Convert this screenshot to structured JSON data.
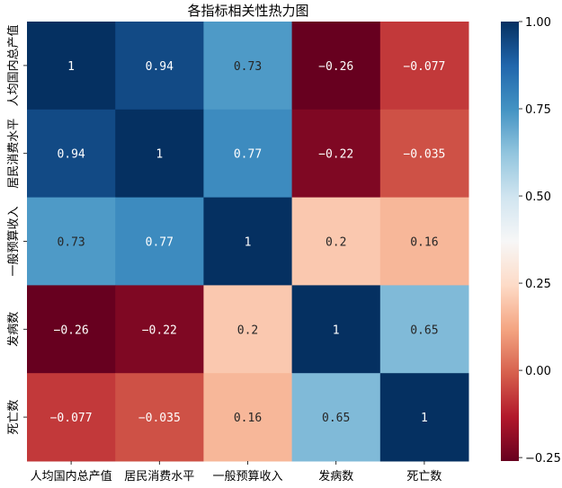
{
  "chart_data": {
    "type": "heatmap",
    "title": "各指标相关性热力图",
    "xlabel": "",
    "ylabel": "",
    "x_categories": [
      "人均国内总产值",
      "居民消费水平",
      "一般预算收入",
      "发病数",
      "死亡数"
    ],
    "y_categories": [
      "人均国内总产值",
      "居民消费水平",
      "一般预算收入",
      "发病数",
      "死亡数"
    ],
    "values": [
      [
        1,
        0.94,
        0.73,
        -0.26,
        -0.077
      ],
      [
        0.94,
        1,
        0.77,
        -0.22,
        -0.035
      ],
      [
        0.73,
        0.77,
        1,
        0.2,
        0.16
      ],
      [
        -0.26,
        -0.22,
        0.2,
        1,
        0.65
      ],
      [
        -0.077,
        -0.035,
        0.16,
        0.65,
        1
      ]
    ],
    "annotations": [
      [
        "1",
        "0.94",
        "0.73",
        "−0.26",
        "−0.077"
      ],
      [
        "0.94",
        "1",
        "0.77",
        "−0.22",
        "−0.035"
      ],
      [
        "0.73",
        "0.77",
        "1",
        "0.2",
        "0.16"
      ],
      [
        "−0.26",
        "−0.22",
        "0.2",
        "1",
        "0.65"
      ],
      [
        "−0.077",
        "−0.035",
        "0.16",
        "0.65",
        "1"
      ]
    ],
    "colormap": "RdBu",
    "vmin": -0.26,
    "vmax": 1,
    "colorbar_ticks": [
      {
        "value": 1.0,
        "label": "1.00"
      },
      {
        "value": 0.75,
        "label": "0.75"
      },
      {
        "value": 0.5,
        "label": "0.50"
      },
      {
        "value": 0.25,
        "label": "0.25"
      },
      {
        "value": 0.0,
        "label": "0.00"
      },
      {
        "value": -0.25,
        "label": "−0.25"
      }
    ],
    "colorbar_position": "right",
    "grid": false
  }
}
